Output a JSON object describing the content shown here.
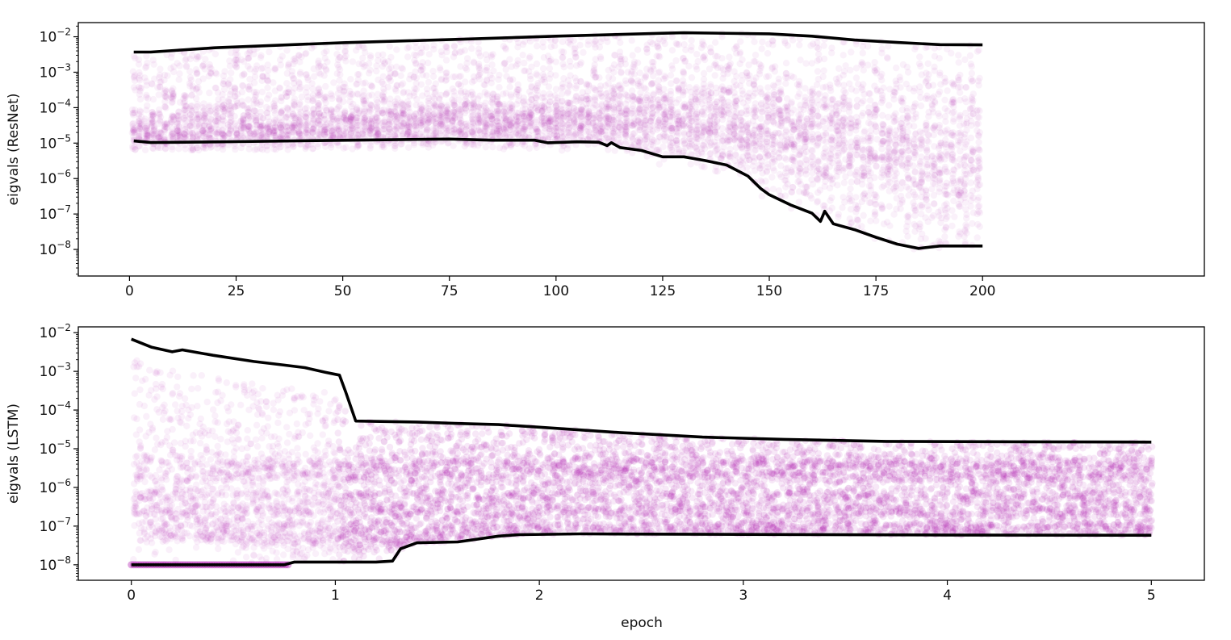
{
  "chart_data": [
    {
      "type": "scatter",
      "title": "",
      "xlabel": "",
      "ylabel": "eigvals (ResNet)",
      "xlim": [
        -12,
        252
      ],
      "ylim_log10": [
        -8.75,
        -1.6
      ],
      "y_scale": "log",
      "x_ticks": [
        0,
        25,
        50,
        75,
        100,
        125,
        150,
        175,
        200
      ],
      "y_ticks": [
        {
          "exp": -2,
          "label": "10",
          "sup": "−2"
        },
        {
          "exp": -3,
          "label": "10",
          "sup": "−3"
        },
        {
          "exp": -4,
          "label": "10",
          "sup": "−4"
        },
        {
          "exp": -5,
          "label": "10",
          "sup": "−5"
        },
        {
          "exp": -6,
          "label": "10",
          "sup": "−6"
        },
        {
          "exp": -7,
          "label": "10",
          "sup": "−7"
        },
        {
          "exp": -8,
          "label": "10",
          "sup": "−8"
        }
      ],
      "scatter_color": "#a600a6",
      "envelope_color": "#000000",
      "density_center_log10": [
        [
          1,
          -4.8
        ],
        [
          50,
          -4.6
        ],
        [
          100,
          -4.4
        ],
        [
          130,
          -4.4
        ],
        [
          150,
          -4.6
        ],
        [
          175,
          -5.2
        ],
        [
          200,
          -5.6
        ]
      ],
      "density_spread_log10": [
        [
          1,
          0.45
        ],
        [
          100,
          0.5
        ],
        [
          140,
          0.7
        ],
        [
          175,
          1.0
        ],
        [
          200,
          1.2
        ]
      ],
      "upper_envelope": [
        [
          1,
          0.0037
        ],
        [
          5,
          0.0037
        ],
        [
          20,
          0.0049
        ],
        [
          50,
          0.0068
        ],
        [
          75,
          0.0083
        ],
        [
          100,
          0.0104
        ],
        [
          125,
          0.0126
        ],
        [
          130,
          0.013
        ],
        [
          150,
          0.0121
        ],
        [
          160,
          0.0104
        ],
        [
          170,
          0.0081
        ],
        [
          180,
          0.0069
        ],
        [
          190,
          0.006
        ],
        [
          200,
          0.0059
        ]
      ],
      "lower_envelope": [
        [
          1,
          1.15e-05
        ],
        [
          5,
          1.04e-05
        ],
        [
          25,
          1.1e-05
        ],
        [
          50,
          1.2e-05
        ],
        [
          75,
          1.3e-05
        ],
        [
          85,
          1.21e-05
        ],
        [
          95,
          1.21e-05
        ],
        [
          98,
          1.02e-05
        ],
        [
          105,
          1.09e-05
        ],
        [
          110,
          1.06e-05
        ],
        [
          112,
          8.5e-06
        ],
        [
          113,
          1.03e-05
        ],
        [
          115,
          7.5e-06
        ],
        [
          120,
          6.2e-06
        ],
        [
          125,
          4.1e-06
        ],
        [
          130,
          4.1e-06
        ],
        [
          135,
          3.2e-06
        ],
        [
          140,
          2.4e-06
        ],
        [
          145,
          1.17e-06
        ],
        [
          148,
          5.2e-07
        ],
        [
          150,
          3.5e-07
        ],
        [
          155,
          1.8e-07
        ],
        [
          160,
          1.05e-07
        ],
        [
          162,
          6.2e-08
        ],
        [
          163,
          1.2e-07
        ],
        [
          165,
          5.3e-08
        ],
        [
          170,
          3.6e-08
        ],
        [
          175,
          2.2e-08
        ],
        [
          180,
          1.41e-08
        ],
        [
          185,
          1.07e-08
        ],
        [
          190,
          1.25e-08
        ],
        [
          200,
          1.25e-08
        ]
      ]
    },
    {
      "type": "scatter",
      "title": "",
      "xlabel": "epoch",
      "ylabel": "eigvals (LSTM)",
      "xlim": [
        -0.26,
        5.26
      ],
      "ylim_log10": [
        -8.4,
        -1.85
      ],
      "y_scale": "log",
      "x_ticks": [
        0,
        1,
        2,
        3,
        4,
        5
      ],
      "y_ticks": [
        {
          "exp": -2,
          "label": "10",
          "sup": "−2"
        },
        {
          "exp": -3,
          "label": "10",
          "sup": "−3"
        },
        {
          "exp": -4,
          "label": "10",
          "sup": "−4"
        },
        {
          "exp": -5,
          "label": "10",
          "sup": "−5"
        },
        {
          "exp": -6,
          "label": "10",
          "sup": "−6"
        },
        {
          "exp": -7,
          "label": "10",
          "sup": "−7"
        },
        {
          "exp": -8,
          "label": "10",
          "sup": "−8"
        }
      ],
      "scatter_color": "#a600a6",
      "envelope_color": "#000000",
      "floor_value": 1e-08,
      "floor_until_epoch": 0.78,
      "upper_envelope": [
        [
          0,
          0.0068
        ],
        [
          0.1,
          0.0042
        ],
        [
          0.2,
          0.0032
        ],
        [
          0.25,
          0.0036
        ],
        [
          0.4,
          0.0026
        ],
        [
          0.6,
          0.0018
        ],
        [
          0.75,
          0.00145
        ],
        [
          0.85,
          0.00125
        ],
        [
          0.95,
          0.00095
        ],
        [
          1.02,
          0.0008
        ],
        [
          1.05,
          0.0003
        ],
        [
          1.1,
          5.2e-05
        ],
        [
          1.4,
          4.9e-05
        ],
        [
          1.6,
          4.5e-05
        ],
        [
          1.8,
          4.2e-05
        ],
        [
          2.0,
          3.6e-05
        ],
        [
          2.4,
          2.6e-05
        ],
        [
          2.8,
          2e-05
        ],
        [
          3.2,
          1.75e-05
        ],
        [
          3.7,
          1.55e-05
        ],
        [
          4.2,
          1.52e-05
        ],
        [
          5.0,
          1.48e-05
        ]
      ],
      "lower_envelope": [
        [
          0,
          1e-08
        ],
        [
          0.75,
          1e-08
        ],
        [
          0.8,
          1.18e-08
        ],
        [
          1.2,
          1.18e-08
        ],
        [
          1.28,
          1.25e-08
        ],
        [
          1.32,
          2.6e-08
        ],
        [
          1.4,
          3.7e-08
        ],
        [
          1.6,
          3.9e-08
        ],
        [
          1.8,
          5.5e-08
        ],
        [
          1.9,
          6e-08
        ],
        [
          2.2,
          6.3e-08
        ],
        [
          3.0,
          6.1e-08
        ],
        [
          4.0,
          5.9e-08
        ],
        [
          5.0,
          5.8e-08
        ]
      ],
      "bands_log10": [
        -5.4,
        -5.7,
        -6.2,
        -6.6,
        -7.0,
        -7.25,
        -7.45
      ]
    }
  ]
}
